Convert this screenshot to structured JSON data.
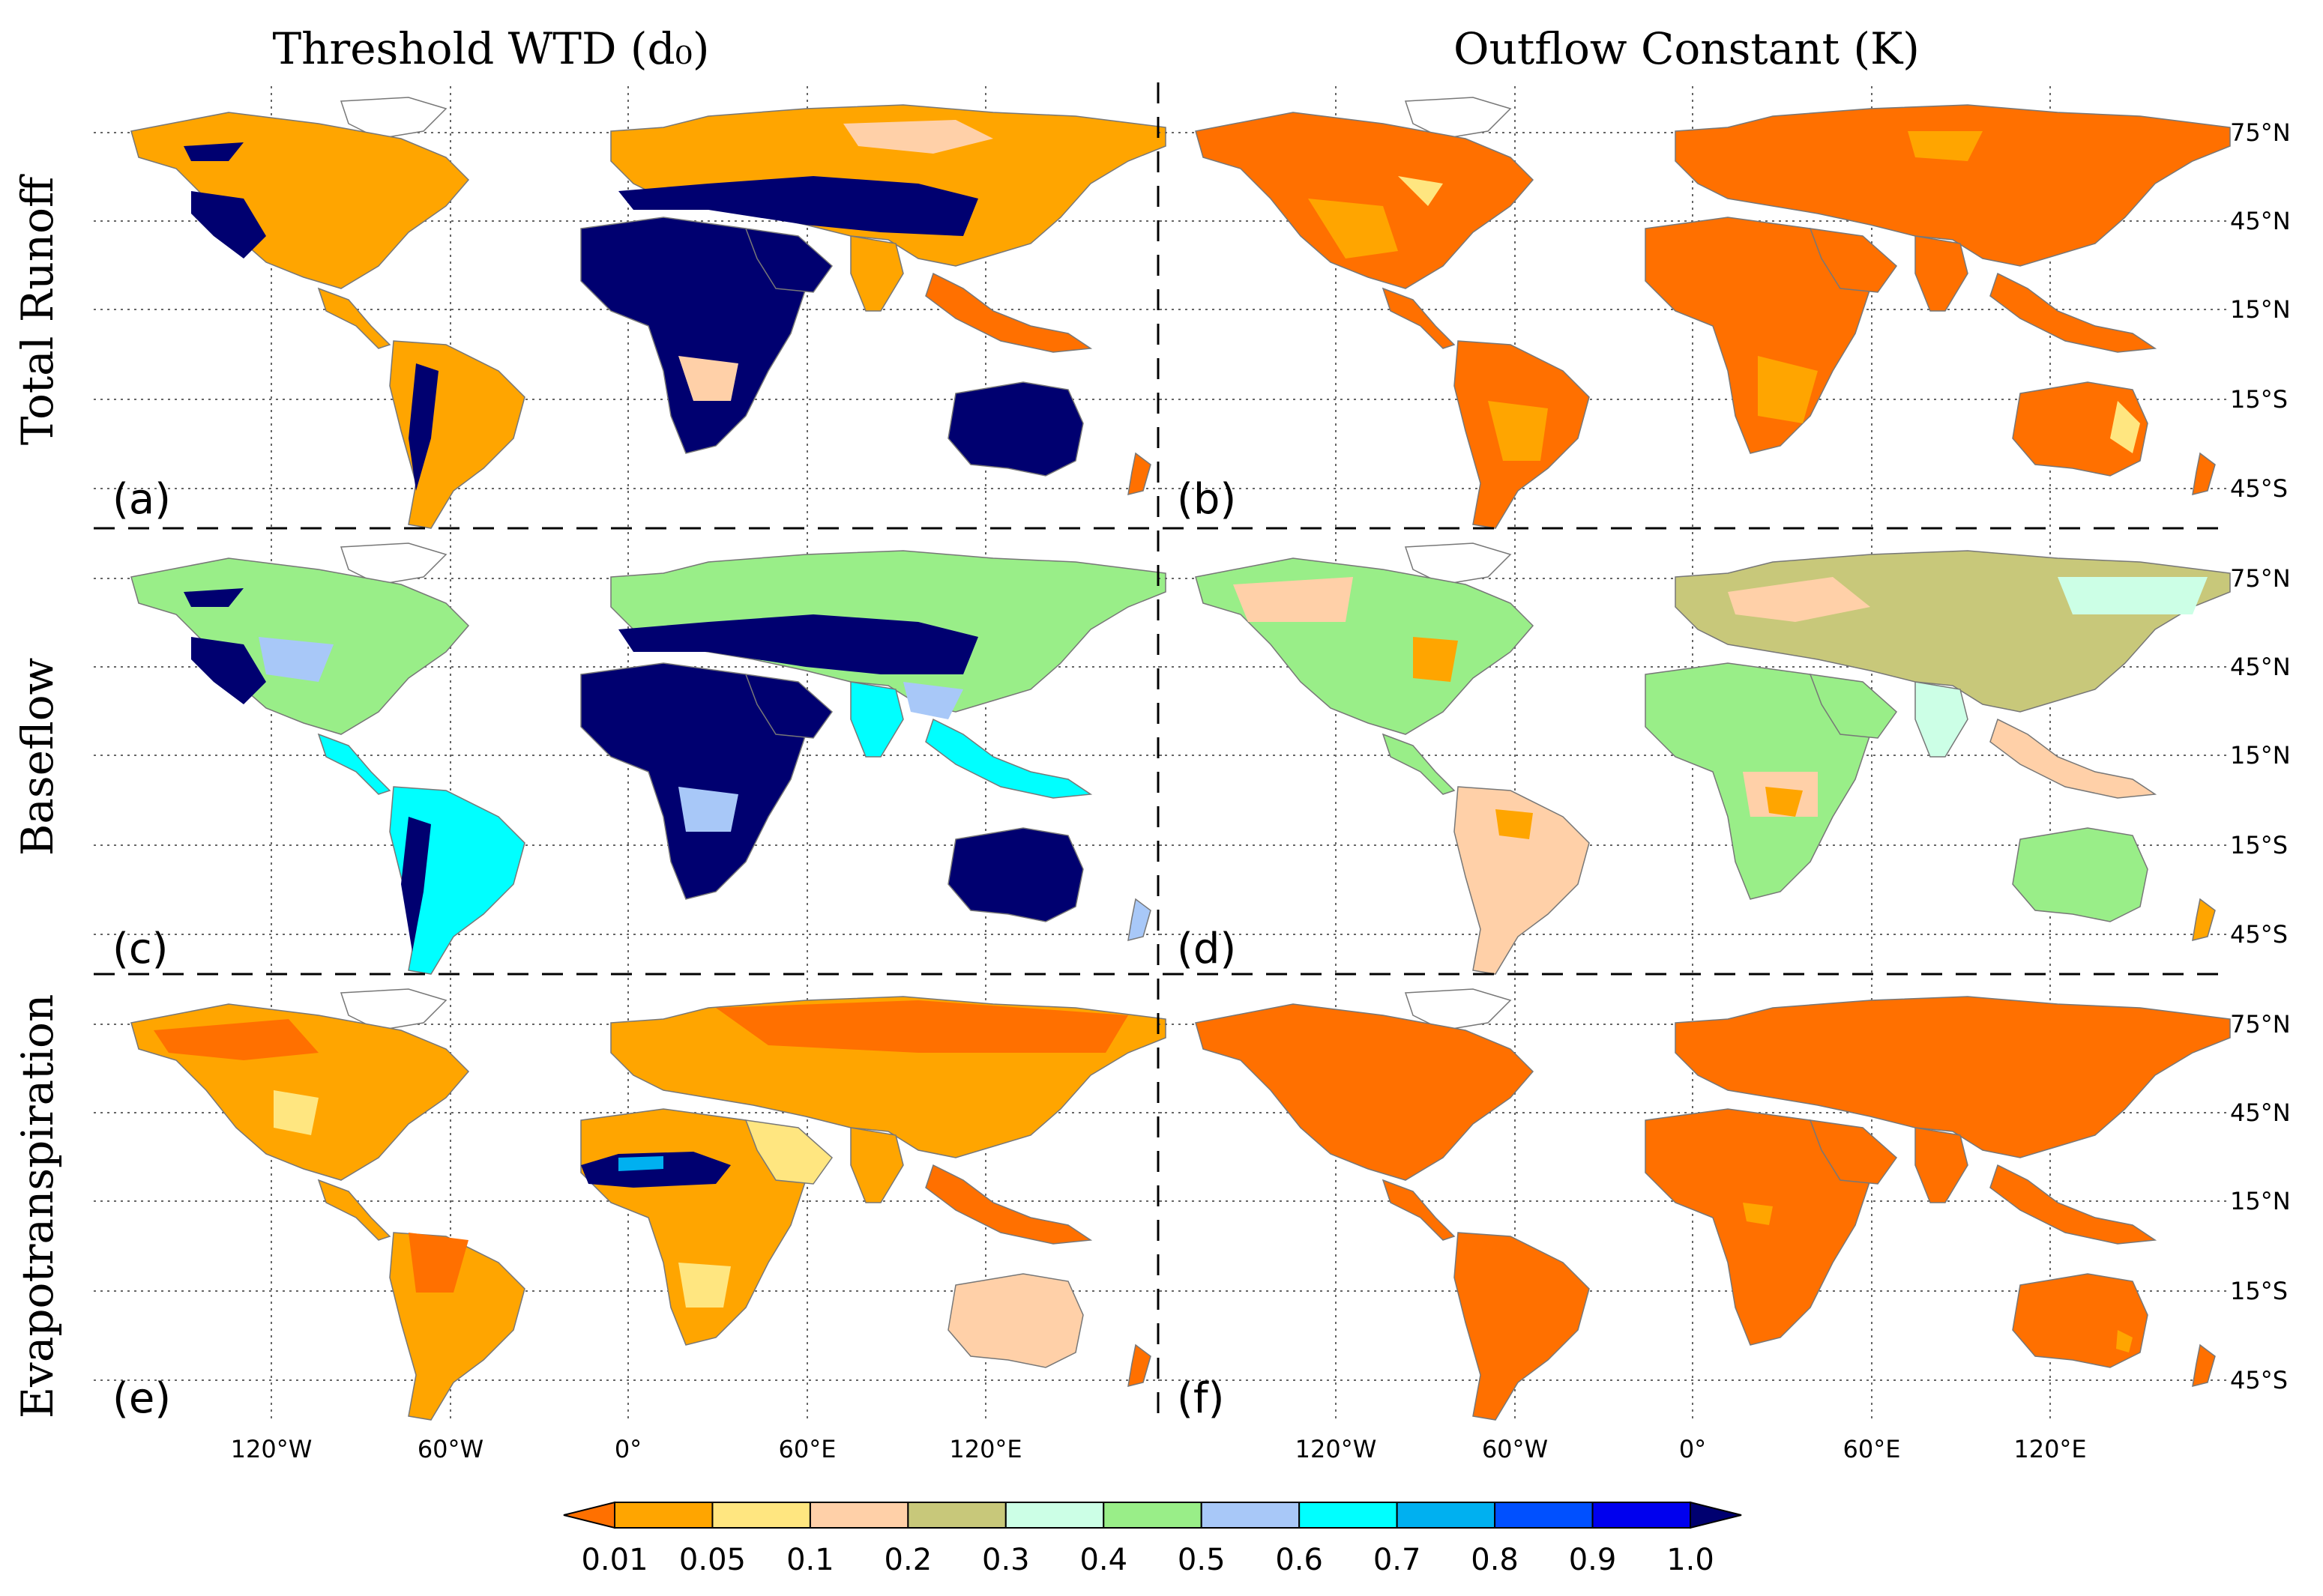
{
  "columns": {
    "left": "Threshold WTD (d₀)",
    "right": "Outflow Constant (K)"
  },
  "rows": [
    "Total Runoff",
    "Baseflow",
    "Evapotranspiration"
  ],
  "panel_labels": [
    "(a)",
    "(b)",
    "(c)",
    "(d)",
    "(e)",
    "(f)"
  ],
  "lat_labels": [
    "75°N",
    "45°N",
    "15°N",
    "15°S",
    "45°S"
  ],
  "lon_labels": [
    "120°W",
    "60°W",
    "0°",
    "60°E",
    "120°E"
  ],
  "colorbar": {
    "ticks": [
      "0.01",
      "0.05",
      "0.1",
      "0.2",
      "0.3",
      "0.4",
      "0.5",
      "0.6",
      "0.7",
      "0.8",
      "0.9",
      "1.0"
    ],
    "colors": [
      "#ffa500",
      "#ffe680",
      "#ffd0a8",
      "#c8c87a",
      "#ccffe6",
      "#99ee88",
      "#a8c8f8",
      "#00ffff",
      "#00b0f0",
      "#0050ff",
      "#0000ee"
    ],
    "under_color": "#ff7000",
    "over_color": "#000070"
  },
  "panels": [
    {
      "id": "a",
      "dominant": "#000070",
      "secondary": "#ffa500"
    },
    {
      "id": "b",
      "dominant": "#ff7000",
      "secondary": "#ffa500"
    },
    {
      "id": "c",
      "dominant": "#99ee88",
      "secondary": "#000070"
    },
    {
      "id": "d",
      "dominant": "#99ee88",
      "secondary": "#ffd0a8"
    },
    {
      "id": "e",
      "dominant": "#ffa500",
      "secondary": "#ff7000"
    },
    {
      "id": "f",
      "dominant": "#ff7000",
      "secondary": "#ffa500"
    }
  ]
}
